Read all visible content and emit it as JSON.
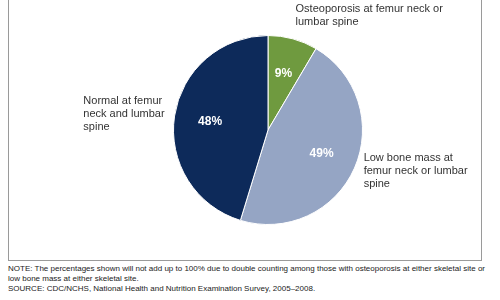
{
  "chart_data": {
    "type": "pie",
    "categories": [
      "Osteoporosis at femur neck or lumbar spine",
      "Low bone mass at femur neck or lumbar spine",
      "Normal at femur neck and lumbar spine"
    ],
    "values": [
      9,
      49,
      48
    ],
    "value_labels": [
      "9%",
      "49%",
      "48%"
    ],
    "colors": [
      "#6f9a3f",
      "#95a5c4",
      "#0d2a5a"
    ],
    "data_labels": true,
    "annotations": [
      "NOTE: The percentages shown will not add up to 100% due to double counting among those with osteoporosis at either skeletal site or low bone mass at either skeletal site.",
      "SOURCE: CDC/NCHS, National Health and Nutrition Examination Survey, 2005–2008."
    ]
  }
}
